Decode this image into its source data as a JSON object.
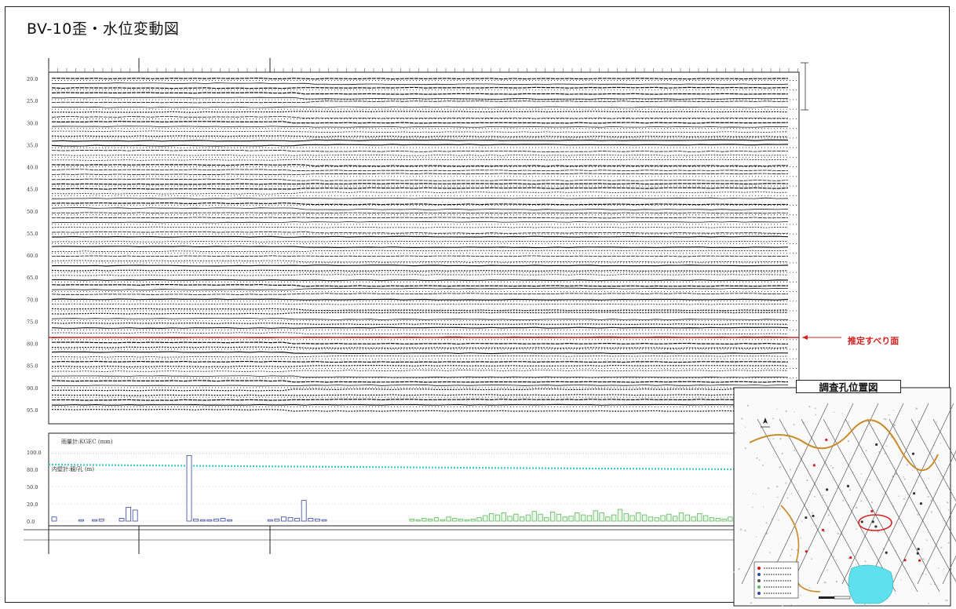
{
  "page": {
    "title": "BV-10歪・水位変動図"
  },
  "annotation": {
    "slip_plane_label": "推定すべり面"
  },
  "location_map": {
    "title": "調査孔位置図"
  },
  "colors": {
    "slip_line": "#d42020",
    "water_level": "#3cc8c8",
    "rain_green": "#5cb85c",
    "rain_blue": "#4a5aa8",
    "map_water": "#5fe0ef",
    "map_contour": "#c98a2a"
  },
  "chart_data": [
    {
      "type": "line",
      "title": "",
      "ylabel": "",
      "y_tick_labels": [
        "20.0",
        "25.0",
        "30.0",
        "35.0",
        "40.0",
        "45.0",
        "50.0",
        "55.0",
        "60.0",
        "65.0",
        "70.0",
        "75.0",
        "80.0",
        "85.0",
        "90.0",
        "95.0"
      ],
      "ylim": [
        95.0,
        20.0
      ],
      "series_count": 70,
      "grid": true,
      "annotations": [
        {
          "text": "推定すべり面",
          "y": 80.0
        }
      ]
    },
    {
      "type": "bar",
      "labels": [
        "雨量計:KGEC (mm)",
        "内壁計:観/孔 (m)"
      ],
      "y_tick_labels": [
        "100.0",
        "80.0",
        "50.0",
        "20.0",
        "0.0"
      ],
      "ylim": [
        0,
        100
      ],
      "water_level": 88,
      "rain_blue": [
        6,
        0,
        0,
        0,
        2,
        0,
        2,
        3,
        0,
        0,
        4,
        20,
        16,
        0,
        0,
        0,
        0,
        0,
        0,
        0,
        95,
        3,
        2,
        2,
        3,
        4,
        2,
        0,
        0,
        0,
        0,
        0,
        2,
        3,
        6,
        5,
        4,
        30,
        4,
        3,
        2,
        0
      ],
      "rain_green": [
        3,
        2,
        4,
        3,
        5,
        2,
        6,
        4,
        3,
        2,
        3,
        5,
        8,
        11,
        9,
        12,
        7,
        10,
        6,
        9,
        14,
        10,
        5,
        13,
        10,
        6,
        7,
        12,
        9,
        8,
        15,
        12,
        6,
        9,
        17,
        11,
        8,
        12,
        9,
        6,
        5,
        8,
        10,
        7,
        12,
        9,
        6,
        11,
        8,
        5,
        4,
        3,
        6,
        2
      ]
    }
  ]
}
